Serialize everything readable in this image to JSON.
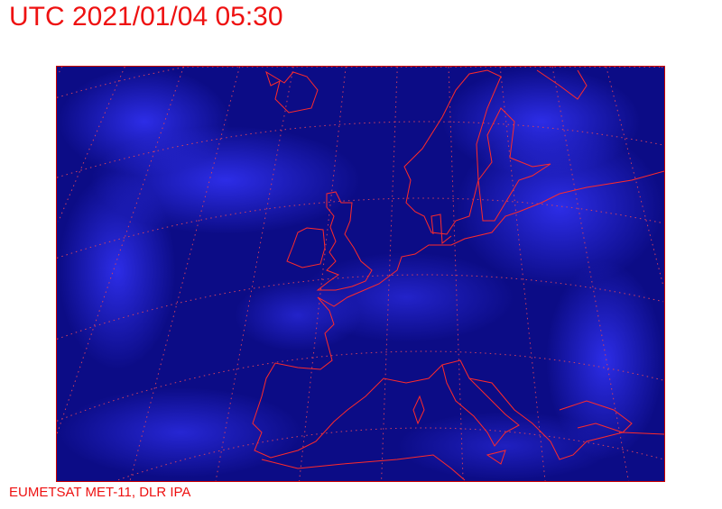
{
  "header": {
    "title": "UTC 2021/01/04 05:30"
  },
  "footer": {
    "credit": "EUMETSAT MET-11, DLR IPA"
  },
  "map": {
    "region": "Europe / North Atlantic",
    "imagery": "satellite composite",
    "colors": {
      "background": "#0a0a7a",
      "cloud": "#3a3aff",
      "coastline": "#ff2a2a",
      "graticule": "#d04060",
      "text": "#ee1111"
    },
    "graticule": "dotted lat/lon grid"
  }
}
